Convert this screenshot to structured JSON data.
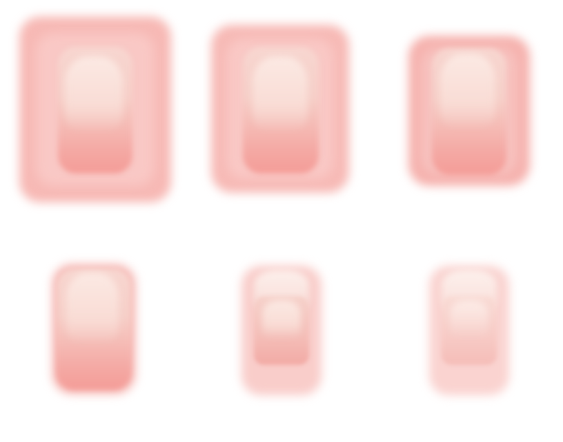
{
  "tiles": [
    {
      "name": "icon-tile-1",
      "color": "#f6b4b0"
    },
    {
      "name": "icon-tile-2",
      "color": "#f6b4b0"
    },
    {
      "name": "icon-tile-3",
      "color": "#f6b4b0"
    },
    {
      "name": "icon-tile-4",
      "color": "#f6b4b0"
    },
    {
      "name": "icon-tile-5",
      "color": "#f9c8c5"
    },
    {
      "name": "icon-tile-6",
      "color": "#fad2cf"
    }
  ]
}
